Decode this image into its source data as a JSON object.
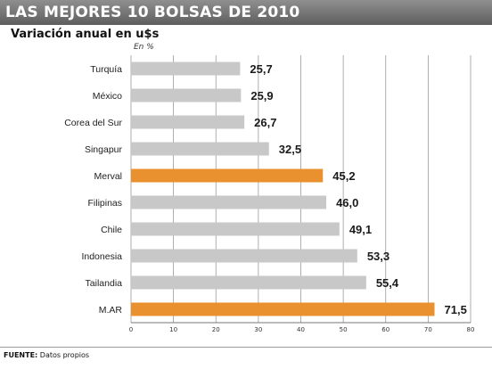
{
  "header": {
    "title": "LAS MEJORES 10 BOLSAS DE 2010"
  },
  "subtitle": "Variación anual en u$s",
  "unit_label": "En %",
  "footer": {
    "source_label": "FUENTE:",
    "source_text": "Datos propios"
  },
  "colors": {
    "bar_default": "#c8c8c8",
    "bar_highlight": "#e8912e",
    "grid": "#9a9a9a",
    "header_bg": "#6f6f6f"
  },
  "chart_data": {
    "type": "bar",
    "orientation": "horizontal",
    "categories": [
      "Turquía",
      "México",
      "Corea del Sur",
      "Singapur",
      "Merval",
      "Filipinas",
      "Chile",
      "Indonesia",
      "Tailandia",
      "M.AR"
    ],
    "values": [
      25.7,
      25.9,
      26.7,
      32.5,
      45.2,
      46.0,
      49.1,
      53.3,
      55.4,
      71.5
    ],
    "value_labels": [
      "25,7",
      "25,9",
      "26,7",
      "32,5",
      "45,2",
      "46,0",
      "49,1",
      "53,3",
      "55,4",
      "71,5"
    ],
    "highlighted": [
      "Merval",
      "M.AR"
    ],
    "xlim": [
      0,
      80
    ],
    "x_ticks": [
      0,
      10,
      20,
      30,
      40,
      50,
      60,
      70,
      80
    ],
    "grid": true
  }
}
